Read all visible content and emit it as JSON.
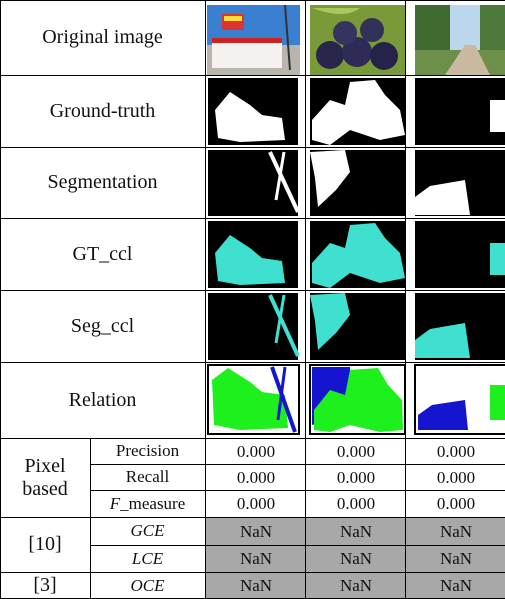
{
  "rows": [
    "Original image",
    "Ground-truth",
    "Segmentation",
    "GT_ccl",
    "Seg_ccl",
    "Relation"
  ],
  "metrics": [
    {
      "label": "Pixel based",
      "shaded": false,
      "items": [
        {
          "name": "Precision",
          "values": [
            "0.000",
            "0.000",
            "0.000"
          ]
        },
        {
          "name": "Recall",
          "values": [
            "0.000",
            "0.000",
            "0.000"
          ]
        },
        {
          "name_italic": "F",
          "name": "_measure",
          "values": [
            "0.000",
            "0.000",
            "0.000"
          ]
        }
      ]
    },
    {
      "label": "[10]",
      "shaded": true,
      "items": [
        {
          "name_italic": "GCE",
          "values": [
            "NaN",
            "NaN",
            "NaN"
          ]
        },
        {
          "name_italic": "LCE",
          "values": [
            "NaN",
            "NaN",
            "NaN"
          ]
        }
      ]
    },
    {
      "label": "[3]",
      "shaded": true,
      "items": [
        {
          "name_italic": "OCE",
          "values": [
            "NaN",
            "NaN",
            "NaN"
          ]
        }
      ]
    }
  ]
}
